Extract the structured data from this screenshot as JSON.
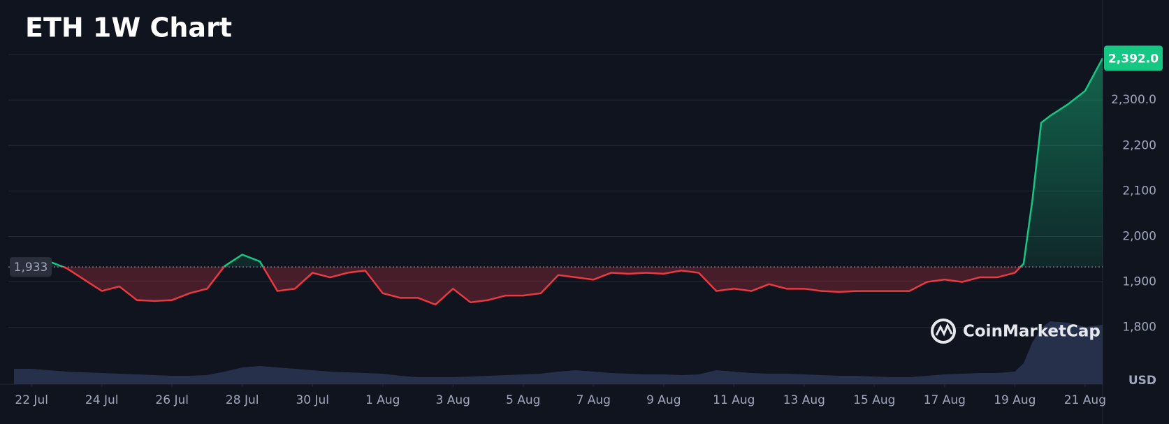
{
  "chart_data": {
    "type": "line",
    "title": "ETH 1W Chart",
    "watermark": "CoinMarketCap",
    "currency_label": "USD",
    "x": [
      -0.5,
      0,
      0.5,
      1,
      1.5,
      2,
      2.5,
      3,
      3.5,
      4,
      4.5,
      5,
      5.5,
      6,
      6.5,
      7,
      7.5,
      8,
      8.5,
      9,
      9.5,
      10,
      10.5,
      11,
      11.5,
      12,
      12.5,
      13,
      13.5,
      14,
      14.5,
      15,
      15.5,
      16,
      16.5,
      17,
      17.5,
      18,
      18.5,
      19,
      19.5,
      20,
      20.5,
      21,
      21.5,
      22,
      22.5,
      23,
      23.5,
      24,
      24.5,
      25,
      25.5,
      26,
      26.5,
      27,
      27.5,
      28,
      28.25,
      28.5,
      28.75,
      29,
      29.5,
      30,
      30.5
    ],
    "series": [
      {
        "name": "Price",
        "above_color": "#16c784",
        "below_color": "#ea3943",
        "values": [
          1935,
          1940,
          1945,
          1930,
          1905,
          1880,
          1890,
          1860,
          1858,
          1860,
          1875,
          1885,
          1935,
          1960,
          1945,
          1880,
          1885,
          1920,
          1910,
          1920,
          1925,
          1875,
          1865,
          1865,
          1850,
          1885,
          1855,
          1860,
          1870,
          1870,
          1875,
          1915,
          1910,
          1905,
          1920,
          1918,
          1920,
          1918,
          1925,
          1920,
          1880,
          1885,
          1880,
          1895,
          1885,
          1885,
          1880,
          1878,
          1880,
          1880,
          1880,
          1880,
          1900,
          1905,
          1900,
          1910,
          1910,
          1920,
          1940,
          2080,
          2250,
          2265,
          2290,
          2320,
          2392
        ]
      },
      {
        "name": "Volume",
        "axis": "y2",
        "color": "#2b3553",
        "values": [
          22,
          22,
          20,
          18,
          17,
          16,
          15,
          14,
          13,
          12,
          12,
          13,
          18,
          24,
          26,
          24,
          22,
          20,
          18,
          17,
          16,
          15,
          12,
          10,
          10,
          10,
          11,
          12,
          13,
          14,
          15,
          18,
          20,
          18,
          16,
          15,
          14,
          14,
          13,
          14,
          20,
          18,
          16,
          15,
          15,
          14,
          13,
          12,
          12,
          11,
          10,
          10,
          12,
          14,
          15,
          16,
          16,
          18,
          30,
          60,
          80,
          90,
          88,
          82,
          85
        ]
      }
    ],
    "baseline": {
      "value": 1933,
      "label": "1,933"
    },
    "last_price": {
      "value": 2392,
      "label": "2,392.0"
    },
    "xlim": [
      -0.66,
      30.5
    ],
    "xticks": [
      {
        "value": 0,
        "label": "22 Jul"
      },
      {
        "value": 2,
        "label": "24 Jul"
      },
      {
        "value": 4,
        "label": "26 Jul"
      },
      {
        "value": 6,
        "label": "28 Jul"
      },
      {
        "value": 8,
        "label": "30 Jul"
      },
      {
        "value": 10,
        "label": "1 Aug"
      },
      {
        "value": 12,
        "label": "3 Aug"
      },
      {
        "value": 14,
        "label": "5 Aug"
      },
      {
        "value": 16,
        "label": "7 Aug"
      },
      {
        "value": 18,
        "label": "9 Aug"
      },
      {
        "value": 20,
        "label": "11 Aug"
      },
      {
        "value": 22,
        "label": "13 Aug"
      },
      {
        "value": 24,
        "label": "15 Aug"
      },
      {
        "value": 26,
        "label": "17 Aug"
      },
      {
        "value": 28,
        "label": "19 Aug"
      },
      {
        "value": 30,
        "label": "21 Aug"
      }
    ],
    "ylim": [
      1675,
      2497
    ],
    "yticks": [
      {
        "value": 1800,
        "label": "1,800"
      },
      {
        "value": 1900,
        "label": "1,900"
      },
      {
        "value": 2000,
        "label": "2,000"
      },
      {
        "value": 2100,
        "label": "2,100"
      },
      {
        "value": 2200,
        "label": "2,200"
      },
      {
        "value": 2300,
        "label": "2,300.0"
      },
      {
        "value": 2400,
        "label": ""
      }
    ],
    "y2lim": [
      0,
      100
    ],
    "grid": true
  }
}
